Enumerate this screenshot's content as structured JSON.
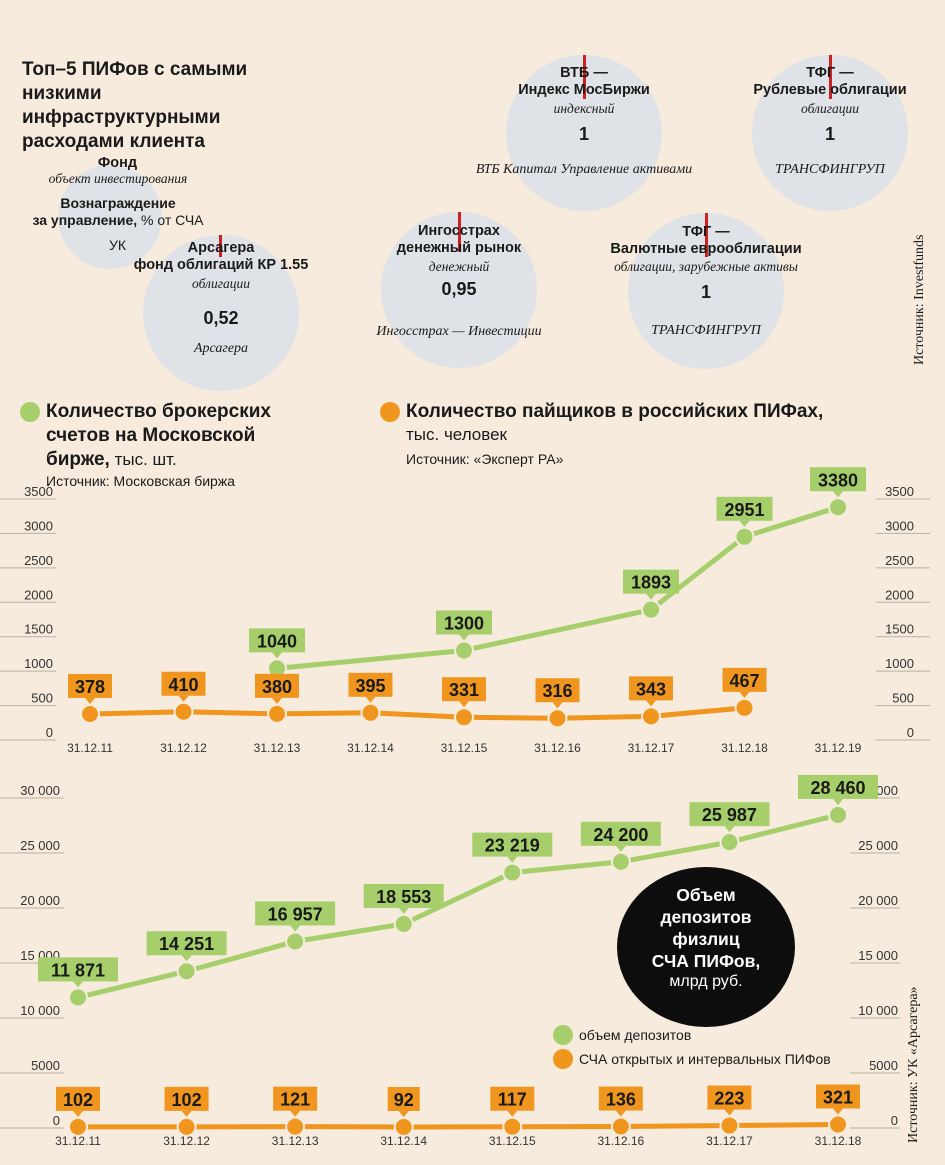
{
  "top5": {
    "title_lines": [
      "Топ–5 ПИФов с самыми",
      "низкими",
      "инфраструктурными",
      "расходами клиента"
    ],
    "legend": {
      "fund": "Фонд",
      "object": "объект инвестирования",
      "fee_bold": "Вознаграждение",
      "fee_rest_bold": "за управление,",
      "fee_unit": " % от СЧА",
      "uk": "УК"
    },
    "funds": [
      {
        "name_lines": [
          "Арсагера",
          "фонд облигаций КР 1.55"
        ],
        "object": "облигации",
        "value": "0,52",
        "uk": "Арсагера"
      },
      {
        "name_lines": [
          "Ингосстрах",
          "денежный рынок"
        ],
        "object": "денежный",
        "value": "0,95",
        "uk": "Ингосстрах — Инвестиции"
      },
      {
        "name_lines": [
          "ВТБ —",
          "Индекс МосБиржи"
        ],
        "object": "индексный",
        "value": "1",
        "uk": "ВТБ Капитал Управление активами"
      },
      {
        "name_lines": [
          "ТФГ —",
          "Валютные еврооблигации"
        ],
        "object": "облигации, зарубежные активы",
        "value": "1",
        "uk": "ТРАНСФИНГРУП"
      },
      {
        "name_lines": [
          "ТФГ —",
          "Рублевые облигации"
        ],
        "object": "облигации",
        "value": "1",
        "uk": "ТРАНСФИНГРУП"
      }
    ],
    "source": "Источник: Investfunds"
  },
  "chart1_header": {
    "green_title_lines": [
      "Количество брокерских",
      "счетов на Московской",
      "бирже,"
    ],
    "green_unit": " тыс. шт.",
    "green_source": "Источник: Московская биржа",
    "orange_title": "Количество пайщиков в российских ПИФах,",
    "orange_unit": "тыс. человек",
    "orange_source": "Источник: «Эксперт РА»"
  },
  "chart2_header": {
    "circle_bold_lines": [
      "Объем",
      "депозитов",
      "физлиц",
      "СЧА ПИФов,"
    ],
    "circle_unit": "млрд руб.",
    "legend_green": "объем депозитов",
    "legend_orange": "СЧА открытых и интервальных ПИФов",
    "source": "Источник: УК «Арсагера»"
  },
  "colors": {
    "green": "#a6cf6c",
    "orange": "#f0961e",
    "bg": "#f6ebdc"
  },
  "chart_data": [
    {
      "type": "line",
      "title": "Количество брокерских счетов на Московской бирже / Количество пайщиков в российских ПИФах",
      "categories": [
        "31.12.11",
        "31.12.12",
        "31.12.13",
        "31.12.14",
        "31.12.15",
        "31.12.16",
        "31.12.17",
        "31.12.18",
        "31.12.19"
      ],
      "ylim": [
        0,
        3500
      ],
      "yticks": [
        0,
        500,
        1000,
        1500,
        2000,
        2500,
        3000,
        3500
      ],
      "series": [
        {
          "name": "Количество брокерских счетов на Московской бирже, тыс. шт.",
          "color": "green",
          "values": [
            null,
            null,
            1040,
            null,
            1300,
            null,
            1893,
            2951,
            3380
          ],
          "labels": [
            null,
            null,
            "1040",
            null,
            "1300",
            null,
            "1893",
            "2951",
            "3380"
          ]
        },
        {
          "name": "Количество пайщиков в российских ПИФах, тыс. человек",
          "color": "orange",
          "values": [
            378,
            410,
            380,
            395,
            331,
            316,
            343,
            467,
            null
          ],
          "labels": [
            "378",
            "410",
            "380",
            "395",
            "331",
            "316",
            "343",
            "467",
            null
          ]
        }
      ]
    },
    {
      "type": "line",
      "title": "Объем депозитов физлиц / СЧА ПИФов, млрд руб.",
      "categories": [
        "31.12.11",
        "31.12.12",
        "31.12.13",
        "31.12.14",
        "31.12.15",
        "31.12.16",
        "31.12.17",
        "31.12.18"
      ],
      "ylim": [
        0,
        30000
      ],
      "yticks": [
        0,
        5000,
        10000,
        15000,
        20000,
        25000,
        30000
      ],
      "ytick_labels": [
        "0",
        "5000",
        "10 000",
        "15 000",
        "20 000",
        "25 000",
        "30 000"
      ],
      "series": [
        {
          "name": "объем депозитов",
          "color": "green",
          "values": [
            11871,
            14251,
            16957,
            18553,
            23219,
            24200,
            25987,
            28460
          ],
          "labels": [
            "11 871",
            "14 251",
            "16 957",
            "18 553",
            "23 219",
            "24 200",
            "25 987",
            "28 460"
          ]
        },
        {
          "name": "СЧА открытых и интервальных ПИФов",
          "color": "orange",
          "values": [
            102,
            102,
            121,
            92,
            117,
            136,
            223,
            321
          ],
          "labels": [
            "102",
            "102",
            "121",
            "92",
            "117",
            "136",
            "223",
            "321"
          ]
        }
      ]
    }
  ]
}
